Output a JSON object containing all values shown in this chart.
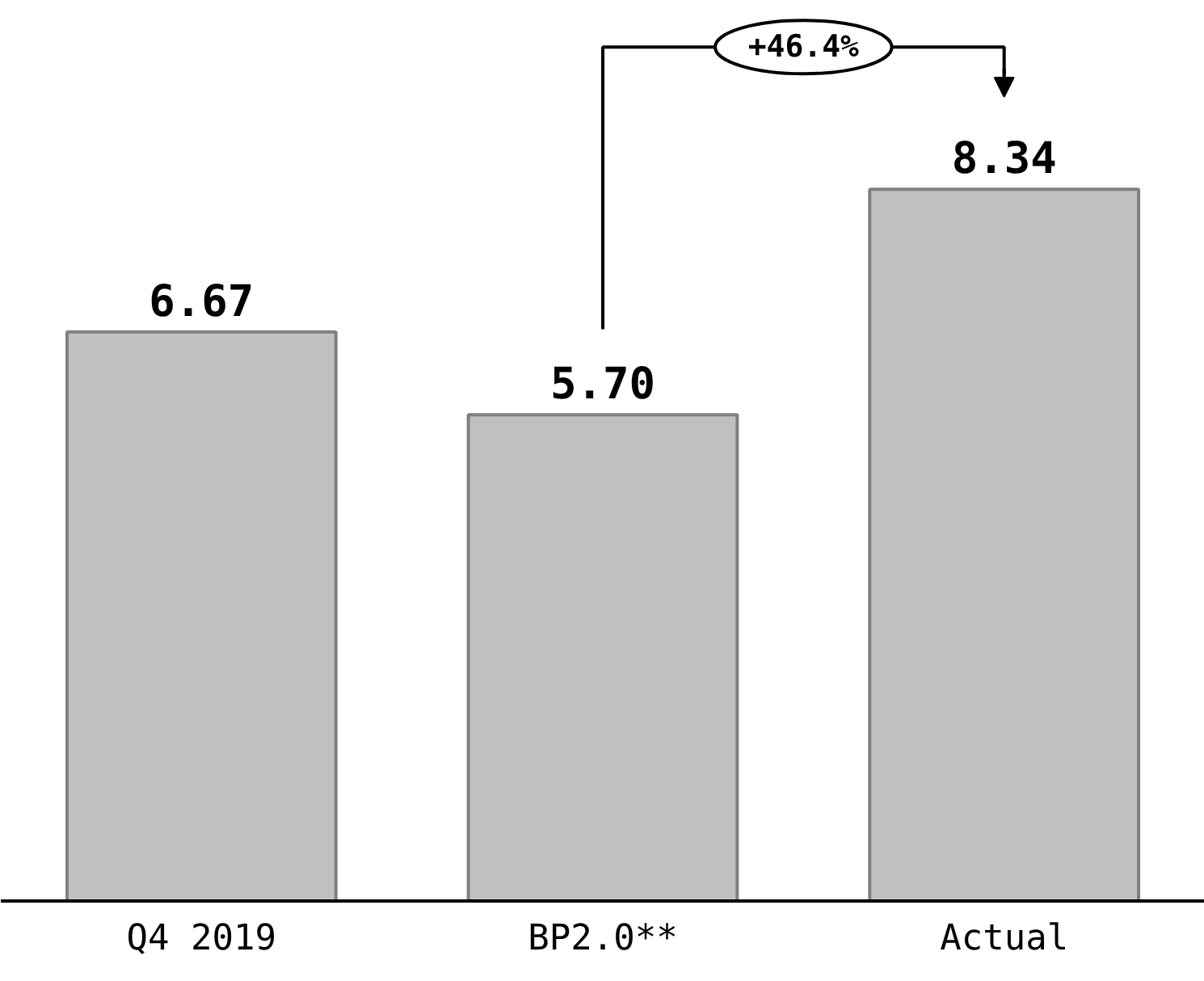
{
  "chart_data": {
    "type": "bar",
    "categories": [
      "Q4 2019",
      "BP2.0**",
      "Actual"
    ],
    "values": [
      6.67,
      5.7,
      8.34
    ],
    "value_labels": [
      "6.67",
      "5.70",
      "8.34"
    ],
    "color": "#c0c0c0",
    "annotations": [
      "+46.4%"
    ]
  }
}
